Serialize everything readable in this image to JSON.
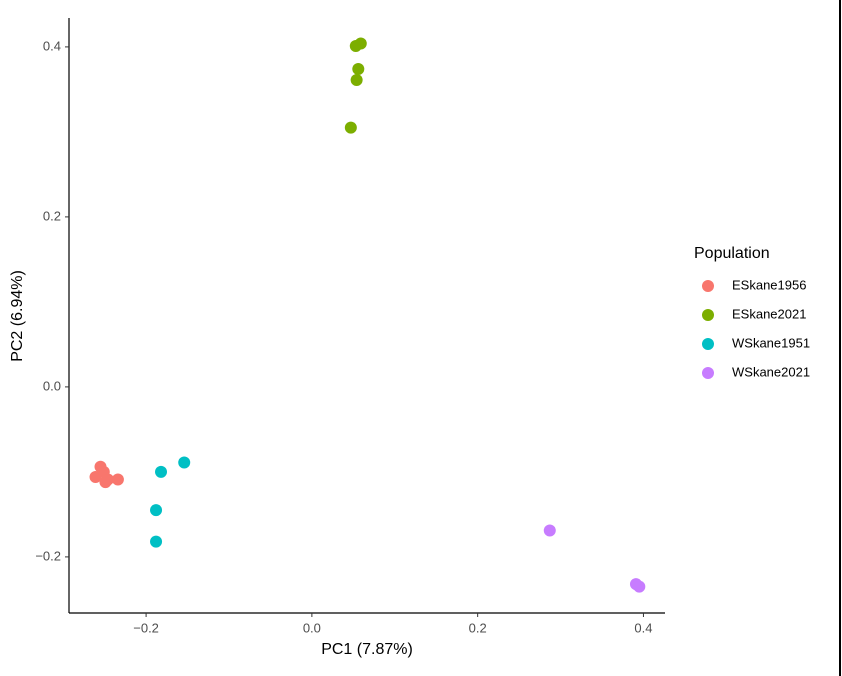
{
  "chart_data": {
    "type": "scatter",
    "x_label": "PC1 (7.87%)",
    "y_label": "PC2 (6.94%)",
    "legend_title": "Population",
    "legend": "right",
    "xlim": [
      -0.293,
      0.426
    ],
    "ylim": [
      -0.266,
      0.434
    ],
    "xticks": [
      {
        "value": -0.2,
        "label": "−0.2"
      },
      {
        "value": 0,
        "label": "0.0"
      },
      0.2,
      0.4
    ],
    "yticks": [
      {
        "value": -0.2,
        "label": "−0.2"
      },
      {
        "value": 0,
        "label": "0.0"
      },
      0.2,
      0.4
    ],
    "grid": false,
    "series": [
      {
        "name": "ESkane1956",
        "color": "#F8766D",
        "x": [
          -0.255,
          -0.251,
          -0.261,
          -0.249,
          -0.234,
          -0.246
        ],
        "values": [
          -0.094,
          -0.1,
          -0.106,
          -0.112,
          -0.109,
          -0.109
        ]
      },
      {
        "name": "ESkane2021",
        "color": "#7CAE00",
        "x": [
          0.053,
          0.059,
          0.056,
          0.054,
          0.047
        ],
        "values": [
          0.401,
          0.404,
          0.374,
          0.361,
          0.305
        ]
      },
      {
        "name": "WSkane1951",
        "color": "#00BFC4",
        "x": [
          -0.154,
          -0.182,
          -0.188,
          -0.188
        ],
        "values": [
          -0.089,
          -0.1,
          -0.145,
          -0.182
        ]
      },
      {
        "name": "WSkane2021",
        "color": "#C77CFF",
        "x": [
          0.287,
          0.391,
          0.395
        ],
        "values": [
          -0.169,
          -0.232,
          -0.235
        ]
      }
    ]
  }
}
